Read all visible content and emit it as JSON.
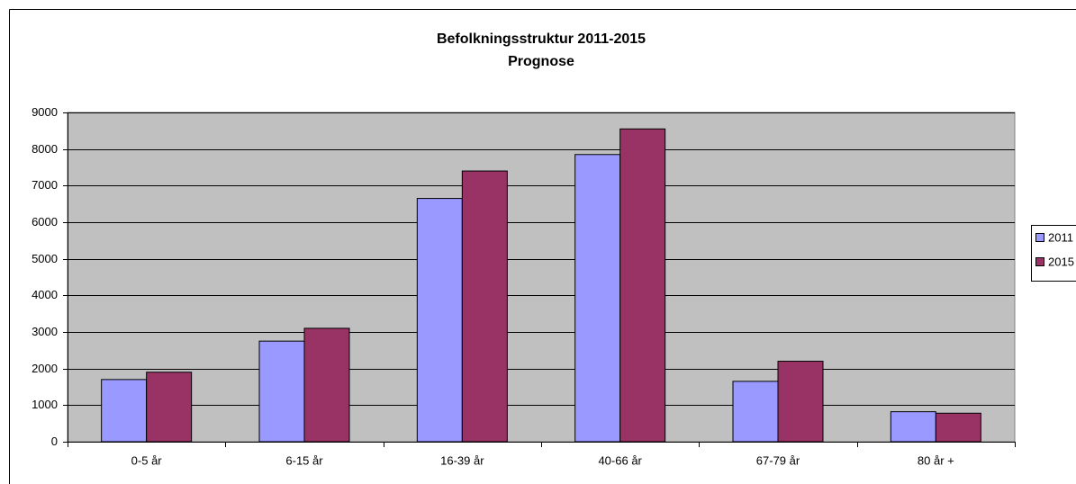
{
  "chart_data": {
    "type": "bar",
    "title": "Befolkningsstruktur 2011-2015",
    "subtitle": "Prognose",
    "categories": [
      "0-5 år",
      "6-15 år",
      "16-39 år",
      "40-66 år",
      "67-79 år",
      "80 år +"
    ],
    "series": [
      {
        "name": "2011",
        "color": "#9999ff",
        "values": [
          1700,
          2750,
          6650,
          7850,
          1650,
          820
        ]
      },
      {
        "name": "2015",
        "color": "#993366",
        "values": [
          1900,
          3100,
          7400,
          8550,
          2200,
          780
        ]
      }
    ],
    "ylim": [
      0,
      9000
    ],
    "yticks": [
      0,
      1000,
      2000,
      3000,
      4000,
      5000,
      6000,
      7000,
      8000,
      9000
    ],
    "grid": true,
    "legend": "right"
  }
}
